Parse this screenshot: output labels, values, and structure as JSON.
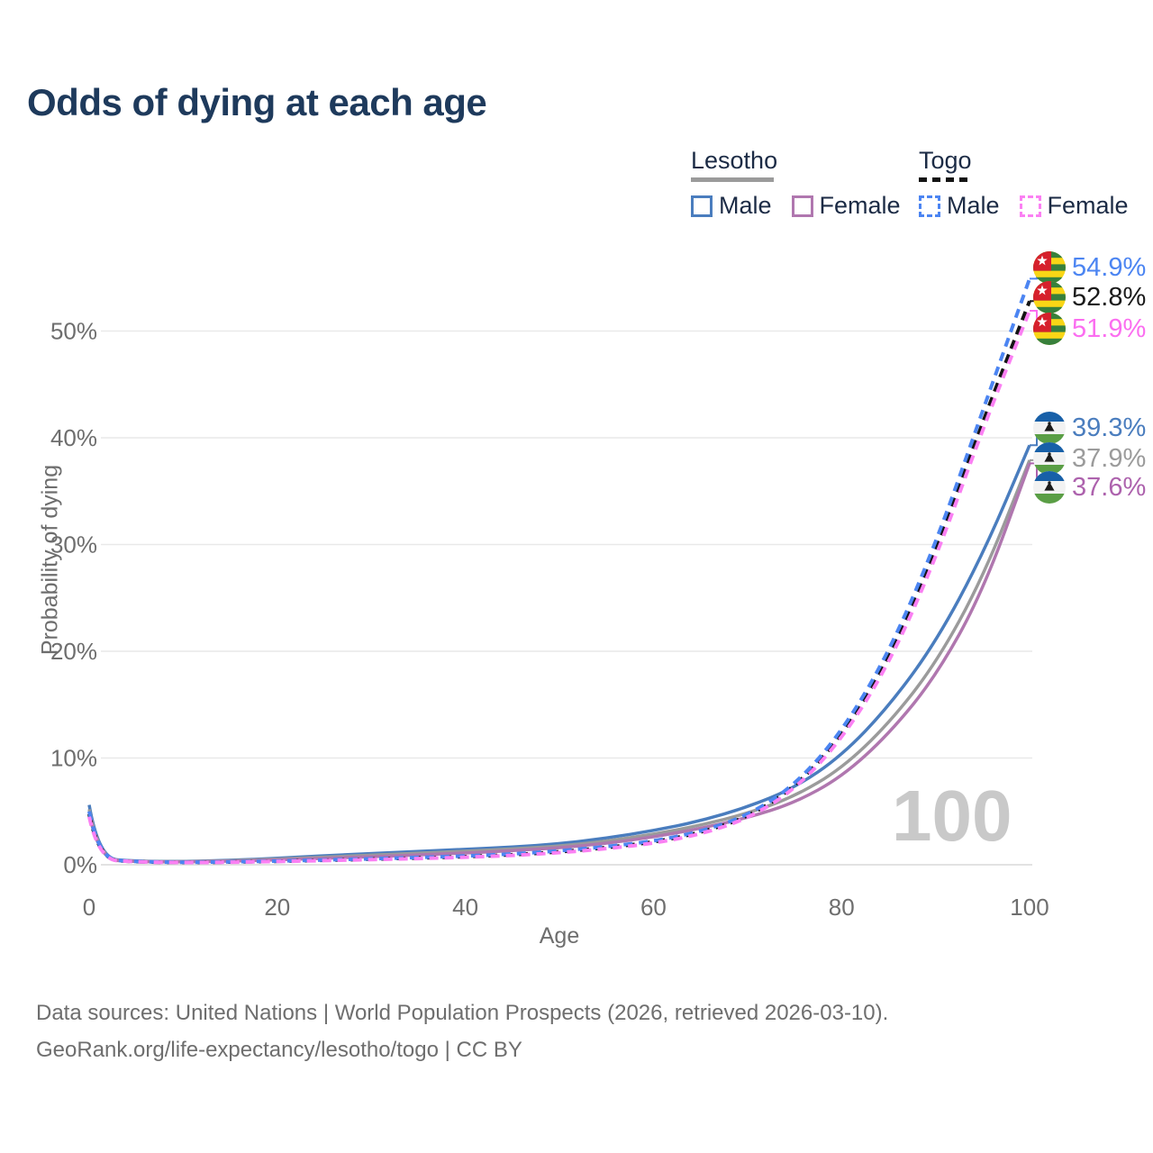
{
  "title": "Odds of dying at each age",
  "legend": {
    "lesotho": {
      "label": "Lesotho",
      "male_label": "Male",
      "female_label": "Female",
      "male_color": "#4a7dbe",
      "female_color": "#b077af",
      "line_style": "solid",
      "underline_color": "#9b9b9b"
    },
    "togo": {
      "label": "Togo",
      "male_label": "Male",
      "female_label": "Female",
      "male_color": "#4c85f2",
      "female_color": "#fb80f3",
      "line_style": "dashed",
      "underline_color": "#141414"
    }
  },
  "chart_data": {
    "type": "line",
    "title": "Odds of dying at each age",
    "xlabel": "Age",
    "ylabel": "Probability of dying",
    "xlim": [
      0,
      100
    ],
    "ylim": [
      0,
      57
    ],
    "x_ticks": [
      0,
      20,
      40,
      60,
      80,
      100
    ],
    "y_ticks": [
      {
        "value": 0,
        "label": "0%"
      },
      {
        "value": 10,
        "label": "10%"
      },
      {
        "value": 20,
        "label": "20%"
      },
      {
        "value": 30,
        "label": "30%"
      },
      {
        "value": 40,
        "label": "40%"
      },
      {
        "value": 50,
        "label": "50%"
      }
    ],
    "grid": true,
    "legend_position": "top-right",
    "x": [
      0,
      1,
      5,
      10,
      15,
      20,
      25,
      30,
      35,
      40,
      45,
      50,
      55,
      60,
      65,
      70,
      75,
      80,
      85,
      90,
      95,
      100
    ],
    "series": [
      {
        "key": "lesotho_male",
        "name": "Lesotho Male",
        "color": "#4a7dbe",
        "dash": "solid",
        "values": [
          5.6,
          0.6,
          0.32,
          0.3,
          0.42,
          0.6,
          0.85,
          1.05,
          1.25,
          1.45,
          1.65,
          1.95,
          2.5,
          3.2,
          4.1,
          5.4,
          7.2,
          10.2,
          14.8,
          20.8,
          29.0,
          39.3
        ]
      },
      {
        "key": "lesotho_total",
        "name": "Lesotho Both sexes",
        "color": "#9b9b9b",
        "dash": "solid",
        "values": [
          5.2,
          0.55,
          0.3,
          0.28,
          0.38,
          0.52,
          0.72,
          0.9,
          1.08,
          1.27,
          1.48,
          1.75,
          2.2,
          2.85,
          3.7,
          4.8,
          6.4,
          9.0,
          13.2,
          18.8,
          26.8,
          37.9
        ]
      },
      {
        "key": "lesotho_female",
        "name": "Lesotho Female",
        "color": "#b077af",
        "dash": "solid",
        "values": [
          4.8,
          0.5,
          0.28,
          0.26,
          0.33,
          0.45,
          0.6,
          0.75,
          0.92,
          1.1,
          1.32,
          1.58,
          2.0,
          2.6,
          3.4,
          4.4,
          5.8,
          8.2,
          12.2,
          17.6,
          25.5,
          37.6
        ]
      },
      {
        "key": "togo_total",
        "name": "Togo Both sexes",
        "color": "#141414",
        "dash": "dashed",
        "values": [
          4.75,
          0.52,
          0.26,
          0.21,
          0.25,
          0.32,
          0.42,
          0.52,
          0.63,
          0.76,
          0.93,
          1.2,
          1.6,
          2.1,
          3.0,
          4.45,
          7.2,
          12.0,
          19.2,
          29.2,
          41.5,
          52.8
        ]
      },
      {
        "key": "togo_male",
        "name": "Togo Male",
        "color": "#4c85f2",
        "dash": "dashed",
        "values": [
          5.0,
          0.55,
          0.28,
          0.22,
          0.27,
          0.35,
          0.45,
          0.56,
          0.68,
          0.82,
          1.0,
          1.3,
          1.7,
          2.2,
          3.1,
          4.6,
          7.4,
          12.4,
          19.8,
          30.0,
          42.5,
          54.9
        ]
      },
      {
        "key": "togo_female",
        "name": "Togo Female",
        "color": "#fb80f3",
        "dash": "dashed",
        "values": [
          4.5,
          0.5,
          0.25,
          0.2,
          0.23,
          0.3,
          0.39,
          0.48,
          0.58,
          0.7,
          0.87,
          1.12,
          1.5,
          2.0,
          2.85,
          4.3,
          7.0,
          11.7,
          18.7,
          28.6,
          40.8,
          51.9
        ]
      }
    ]
  },
  "end_labels": [
    {
      "value": "54.9%",
      "series_key": "togo_male",
      "flag": "togo",
      "color": "#4c85f2"
    },
    {
      "value": "52.8%",
      "series_key": "togo_total",
      "flag": "togo",
      "color": "#1a1a1a"
    },
    {
      "value": "51.9%",
      "series_key": "togo_female",
      "flag": "togo",
      "color": "#fb6ef0"
    },
    {
      "value": "39.3%",
      "series_key": "lesotho_male",
      "flag": "lesotho",
      "color": "#4a7dbe"
    },
    {
      "value": "37.9%",
      "series_key": "lesotho_total",
      "flag": "lesotho",
      "color": "#9b9b9b"
    },
    {
      "value": "37.6%",
      "series_key": "lesotho_female",
      "flag": "lesotho",
      "color": "#ad62ad"
    }
  ],
  "watermark": "100",
  "footer": {
    "line1": "Data sources: United Nations | World Population Prospects (2026, retrieved 2026-03-10).",
    "line2": "GeoRank.org/life-expectancy/lesotho/togo | CC BY"
  }
}
